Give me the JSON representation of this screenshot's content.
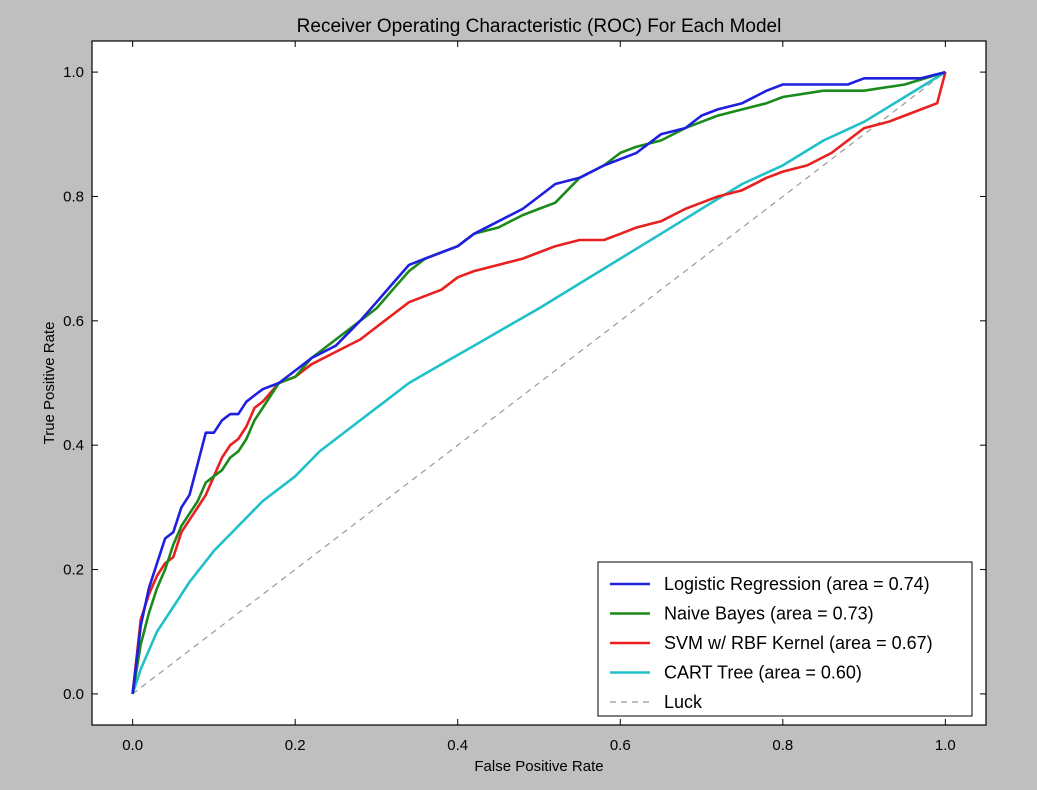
{
  "chart_data": {
    "type": "line",
    "title": "Receiver Operating Characteristic (ROC) For Each Model",
    "xlabel": "False Positive Rate",
    "ylabel": "True Positive Rate",
    "xlim": [
      -0.05,
      1.05
    ],
    "ylim": [
      -0.05,
      1.05
    ],
    "xticks": [
      0.0,
      0.2,
      0.4,
      0.6,
      0.8,
      1.0
    ],
    "yticks": [
      0.0,
      0.2,
      0.4,
      0.6,
      0.8,
      1.0
    ],
    "xtick_labels": [
      "0.0",
      "0.2",
      "0.4",
      "0.6",
      "0.8",
      "1.0"
    ],
    "ytick_labels": [
      "0.0",
      "0.2",
      "0.4",
      "0.6",
      "0.8",
      "1.0"
    ],
    "grid": false,
    "legend_position": "lower-right",
    "series": [
      {
        "name": "Logistic Regression (area = 0.74)",
        "color": "#1f1fe0",
        "style": "solid",
        "x": [
          0,
          0.01,
          0.02,
          0.03,
          0.04,
          0.05,
          0.06,
          0.07,
          0.08,
          0.09,
          0.1,
          0.11,
          0.12,
          0.13,
          0.14,
          0.15,
          0.16,
          0.18,
          0.2,
          0.22,
          0.25,
          0.28,
          0.3,
          0.32,
          0.34,
          0.36,
          0.38,
          0.4,
          0.42,
          0.45,
          0.48,
          0.5,
          0.52,
          0.55,
          0.58,
          0.6,
          0.62,
          0.65,
          0.68,
          0.7,
          0.72,
          0.75,
          0.78,
          0.8,
          0.82,
          0.85,
          0.88,
          0.9,
          0.93,
          0.97,
          1.0
        ],
        "y": [
          0,
          0.11,
          0.17,
          0.21,
          0.25,
          0.26,
          0.3,
          0.32,
          0.37,
          0.42,
          0.42,
          0.44,
          0.45,
          0.45,
          0.47,
          0.48,
          0.49,
          0.5,
          0.52,
          0.54,
          0.56,
          0.6,
          0.63,
          0.66,
          0.69,
          0.7,
          0.71,
          0.72,
          0.74,
          0.76,
          0.78,
          0.8,
          0.82,
          0.83,
          0.85,
          0.86,
          0.87,
          0.9,
          0.91,
          0.93,
          0.94,
          0.95,
          0.97,
          0.98,
          0.98,
          0.98,
          0.98,
          0.99,
          0.99,
          0.99,
          1.0
        ]
      },
      {
        "name": "Naive Bayes (area = 0.73)",
        "color": "#1a8a1a",
        "style": "solid",
        "x": [
          0,
          0.01,
          0.02,
          0.03,
          0.04,
          0.05,
          0.06,
          0.07,
          0.08,
          0.09,
          0.1,
          0.11,
          0.12,
          0.13,
          0.14,
          0.15,
          0.16,
          0.18,
          0.2,
          0.22,
          0.25,
          0.28,
          0.3,
          0.32,
          0.34,
          0.36,
          0.38,
          0.4,
          0.42,
          0.45,
          0.48,
          0.5,
          0.52,
          0.55,
          0.58,
          0.6,
          0.62,
          0.65,
          0.68,
          0.7,
          0.72,
          0.75,
          0.78,
          0.8,
          0.85,
          0.9,
          0.95,
          1.0
        ],
        "y": [
          0,
          0.08,
          0.13,
          0.17,
          0.2,
          0.24,
          0.27,
          0.29,
          0.31,
          0.34,
          0.35,
          0.36,
          0.38,
          0.39,
          0.41,
          0.44,
          0.46,
          0.5,
          0.51,
          0.54,
          0.57,
          0.6,
          0.62,
          0.65,
          0.68,
          0.7,
          0.71,
          0.72,
          0.74,
          0.75,
          0.77,
          0.78,
          0.79,
          0.83,
          0.85,
          0.87,
          0.88,
          0.89,
          0.91,
          0.92,
          0.93,
          0.94,
          0.95,
          0.96,
          0.97,
          0.97,
          0.98,
          1.0
        ]
      },
      {
        "name": "SVM w/ RBF Kernel (area = 0.67)",
        "color": "#e82020",
        "style": "solid",
        "x": [
          0,
          0.01,
          0.02,
          0.03,
          0.04,
          0.05,
          0.06,
          0.07,
          0.08,
          0.09,
          0.1,
          0.11,
          0.12,
          0.13,
          0.14,
          0.15,
          0.16,
          0.18,
          0.2,
          0.22,
          0.25,
          0.28,
          0.3,
          0.32,
          0.34,
          0.36,
          0.38,
          0.4,
          0.42,
          0.45,
          0.48,
          0.5,
          0.52,
          0.55,
          0.58,
          0.6,
          0.62,
          0.65,
          0.68,
          0.7,
          0.72,
          0.75,
          0.78,
          0.8,
          0.83,
          0.86,
          0.88,
          0.9,
          0.93,
          0.95,
          0.97,
          0.99,
          1.0
        ],
        "y": [
          0,
          0.12,
          0.16,
          0.19,
          0.21,
          0.22,
          0.26,
          0.28,
          0.3,
          0.32,
          0.35,
          0.38,
          0.4,
          0.41,
          0.43,
          0.46,
          0.47,
          0.5,
          0.51,
          0.53,
          0.55,
          0.57,
          0.59,
          0.61,
          0.63,
          0.64,
          0.65,
          0.67,
          0.68,
          0.69,
          0.7,
          0.71,
          0.72,
          0.73,
          0.73,
          0.74,
          0.75,
          0.76,
          0.78,
          0.79,
          0.8,
          0.81,
          0.83,
          0.84,
          0.85,
          0.87,
          0.89,
          0.91,
          0.92,
          0.93,
          0.94,
          0.95,
          1.0
        ]
      },
      {
        "name": "CART Tree (area = 0.60)",
        "color": "#20c0c8",
        "style": "solid",
        "x": [
          0,
          0.01,
          0.02,
          0.03,
          0.04,
          0.05,
          0.07,
          0.1,
          0.13,
          0.16,
          0.2,
          0.23,
          0.27,
          0.3,
          0.34,
          0.38,
          0.42,
          0.46,
          0.5,
          0.55,
          0.6,
          0.65,
          0.7,
          0.75,
          0.8,
          0.85,
          0.9,
          0.95,
          1.0
        ],
        "y": [
          0,
          0.04,
          0.07,
          0.1,
          0.12,
          0.14,
          0.18,
          0.23,
          0.27,
          0.31,
          0.35,
          0.39,
          0.43,
          0.46,
          0.5,
          0.53,
          0.56,
          0.59,
          0.62,
          0.66,
          0.7,
          0.74,
          0.78,
          0.82,
          0.85,
          0.89,
          0.92,
          0.96,
          1.0
        ]
      },
      {
        "name": "Luck",
        "color": "#9a9a9a",
        "style": "dashed",
        "x": [
          0,
          1
        ],
        "y": [
          0,
          1
        ]
      }
    ]
  }
}
